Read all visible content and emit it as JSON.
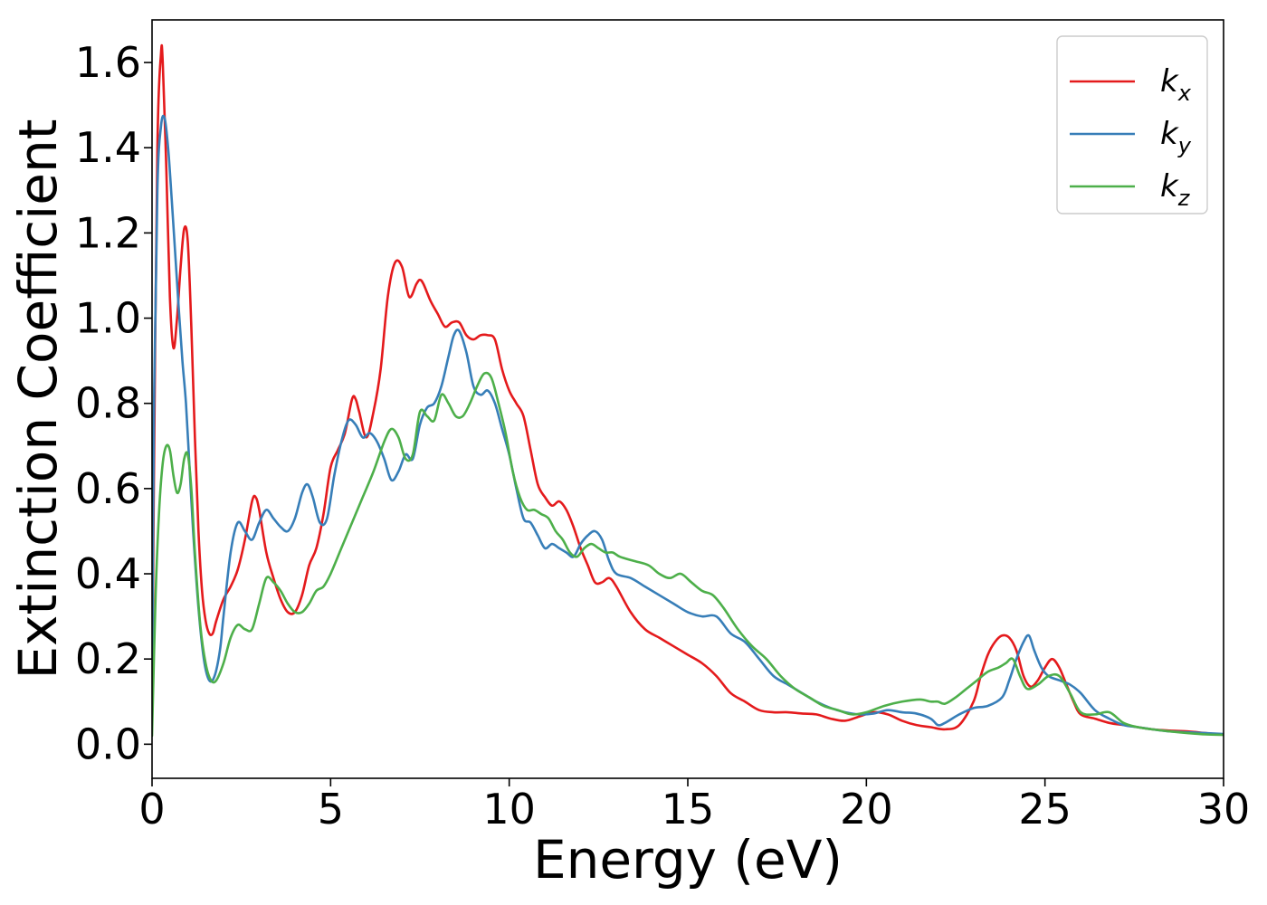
{
  "chart_data": {
    "type": "line",
    "title": "",
    "xlabel": "Energy (eV)",
    "ylabel": "Extinction Coefficient",
    "xlim": [
      0,
      30
    ],
    "ylim": [
      -0.08,
      1.7
    ],
    "xticks": [
      0,
      5,
      10,
      15,
      20,
      25,
      30
    ],
    "xtick_labels": [
      "0",
      "5",
      "10",
      "15",
      "20",
      "25",
      "30"
    ],
    "yticks": [
      0.0,
      0.2,
      0.4,
      0.6,
      0.8,
      1.0,
      1.2,
      1.4,
      1.6
    ],
    "ytick_labels": [
      "0.0",
      "0.2",
      "0.4",
      "0.6",
      "0.8",
      "1.0",
      "1.2",
      "1.4",
      "1.6"
    ],
    "grid": false,
    "legend_position": "top-right",
    "series": [
      {
        "name": "k_x",
        "label_main": "k",
        "label_sub": "x",
        "color": "#e41a1c",
        "x": [
          0,
          0.05,
          0.15,
          0.25,
          0.3,
          0.4,
          0.5,
          0.6,
          0.7,
          0.8,
          0.9,
          1.0,
          1.1,
          1.2,
          1.3,
          1.4,
          1.5,
          1.6,
          1.7,
          1.8,
          2.0,
          2.2,
          2.4,
          2.6,
          2.8,
          2.9,
          3.0,
          3.2,
          3.4,
          3.6,
          3.8,
          4.0,
          4.2,
          4.4,
          4.6,
          4.8,
          5.0,
          5.2,
          5.4,
          5.6,
          5.7,
          5.8,
          6.0,
          6.2,
          6.4,
          6.6,
          6.8,
          7.0,
          7.2,
          7.4,
          7.5,
          7.6,
          7.8,
          8.0,
          8.2,
          8.4,
          8.6,
          8.8,
          9.0,
          9.2,
          9.4,
          9.6,
          9.8,
          10.0,
          10.2,
          10.4,
          10.6,
          10.8,
          11.0,
          11.2,
          11.4,
          11.6,
          11.8,
          12.0,
          12.2,
          12.4,
          12.6,
          12.8,
          13.0,
          13.4,
          13.8,
          14.2,
          14.6,
          15.0,
          15.4,
          15.8,
          16.2,
          16.6,
          17.0,
          17.4,
          17.8,
          18.2,
          18.6,
          19.0,
          19.4,
          19.8,
          20.2,
          20.6,
          21.0,
          21.4,
          21.8,
          22.2,
          22.6,
          23.0,
          23.2,
          23.4,
          23.6,
          23.8,
          24.0,
          24.2,
          24.4,
          24.6,
          24.8,
          25.0,
          25.2,
          25.4,
          25.6,
          25.8,
          26.0,
          26.4,
          26.8,
          27.2,
          27.6,
          28.0,
          28.5,
          29.0,
          29.5,
          30.0
        ],
        "y": [
          0.05,
          0.6,
          1.4,
          1.62,
          1.6,
          1.35,
          1.05,
          0.93,
          1.0,
          1.12,
          1.21,
          1.18,
          0.98,
          0.72,
          0.5,
          0.36,
          0.29,
          0.26,
          0.26,
          0.29,
          0.34,
          0.37,
          0.41,
          0.48,
          0.57,
          0.58,
          0.55,
          0.45,
          0.39,
          0.34,
          0.31,
          0.31,
          0.35,
          0.42,
          0.46,
          0.54,
          0.65,
          0.69,
          0.73,
          0.81,
          0.81,
          0.78,
          0.72,
          0.78,
          0.88,
          1.05,
          1.13,
          1.12,
          1.05,
          1.08,
          1.09,
          1.08,
          1.04,
          1.01,
          0.98,
          0.99,
          0.99,
          0.96,
          0.95,
          0.96,
          0.96,
          0.95,
          0.88,
          0.83,
          0.8,
          0.77,
          0.69,
          0.61,
          0.58,
          0.56,
          0.57,
          0.55,
          0.51,
          0.46,
          0.42,
          0.38,
          0.38,
          0.39,
          0.37,
          0.31,
          0.27,
          0.25,
          0.23,
          0.21,
          0.19,
          0.16,
          0.12,
          0.1,
          0.08,
          0.075,
          0.075,
          0.072,
          0.07,
          0.06,
          0.055,
          0.065,
          0.075,
          0.07,
          0.055,
          0.045,
          0.04,
          0.035,
          0.045,
          0.1,
          0.16,
          0.21,
          0.24,
          0.255,
          0.25,
          0.22,
          0.16,
          0.135,
          0.15,
          0.18,
          0.2,
          0.18,
          0.14,
          0.1,
          0.07,
          0.06,
          0.05,
          0.045,
          0.04,
          0.035,
          0.032,
          0.03,
          0.026,
          0.022
        ]
      },
      {
        "name": "k_y",
        "label_main": "k",
        "label_sub": "y",
        "color": "#377eb8",
        "x": [
          0,
          0.05,
          0.15,
          0.25,
          0.35,
          0.45,
          0.55,
          0.65,
          0.75,
          0.85,
          0.95,
          1.05,
          1.15,
          1.3,
          1.45,
          1.6,
          1.75,
          1.9,
          2.0,
          2.2,
          2.4,
          2.6,
          2.8,
          3.0,
          3.2,
          3.4,
          3.6,
          3.8,
          4.0,
          4.2,
          4.35,
          4.5,
          4.7,
          4.9,
          5.1,
          5.3,
          5.5,
          5.7,
          5.9,
          6.1,
          6.3,
          6.5,
          6.7,
          6.9,
          7.1,
          7.3,
          7.5,
          7.7,
          7.9,
          8.1,
          8.3,
          8.45,
          8.6,
          8.8,
          9.0,
          9.2,
          9.4,
          9.6,
          9.8,
          10.0,
          10.2,
          10.4,
          10.6,
          10.8,
          11.0,
          11.2,
          11.4,
          11.6,
          11.8,
          12.0,
          12.2,
          12.4,
          12.6,
          12.8,
          13.0,
          13.4,
          13.8,
          14.2,
          14.6,
          15.0,
          15.4,
          15.8,
          16.2,
          16.6,
          17.0,
          17.4,
          17.8,
          18.2,
          18.6,
          19.0,
          19.4,
          19.8,
          20.2,
          20.6,
          21.0,
          21.4,
          21.8,
          22.0,
          22.2,
          22.6,
          23.0,
          23.4,
          23.8,
          24.0,
          24.2,
          24.4,
          24.55,
          24.7,
          24.9,
          25.1,
          25.4,
          25.7,
          26.0,
          26.4,
          26.8,
          27.2,
          27.6,
          28.0,
          28.5,
          29.0,
          29.5,
          30.0
        ],
        "y": [
          0.05,
          0.75,
          1.3,
          1.45,
          1.47,
          1.4,
          1.28,
          1.15,
          1.02,
          0.9,
          0.8,
          0.65,
          0.5,
          0.32,
          0.2,
          0.15,
          0.16,
          0.22,
          0.3,
          0.45,
          0.52,
          0.5,
          0.48,
          0.52,
          0.55,
          0.53,
          0.51,
          0.5,
          0.53,
          0.59,
          0.61,
          0.58,
          0.52,
          0.53,
          0.63,
          0.71,
          0.76,
          0.75,
          0.72,
          0.73,
          0.71,
          0.67,
          0.62,
          0.64,
          0.68,
          0.67,
          0.75,
          0.79,
          0.8,
          0.84,
          0.91,
          0.96,
          0.97,
          0.92,
          0.84,
          0.82,
          0.83,
          0.8,
          0.74,
          0.68,
          0.6,
          0.53,
          0.52,
          0.49,
          0.46,
          0.47,
          0.46,
          0.45,
          0.44,
          0.47,
          0.49,
          0.5,
          0.48,
          0.43,
          0.4,
          0.39,
          0.37,
          0.35,
          0.33,
          0.31,
          0.3,
          0.3,
          0.26,
          0.24,
          0.2,
          0.16,
          0.14,
          0.12,
          0.1,
          0.085,
          0.075,
          0.07,
          0.072,
          0.08,
          0.075,
          0.072,
          0.06,
          0.045,
          0.05,
          0.07,
          0.085,
          0.09,
          0.11,
          0.15,
          0.2,
          0.24,
          0.255,
          0.22,
          0.18,
          0.16,
          0.15,
          0.14,
          0.12,
          0.08,
          0.06,
          0.045,
          0.04,
          0.035,
          0.03,
          0.028,
          0.026,
          0.024
        ]
      },
      {
        "name": "k_z",
        "label_main": "k",
        "label_sub": "z",
        "color": "#4daf4a",
        "x": [
          0,
          0.1,
          0.2,
          0.3,
          0.4,
          0.5,
          0.6,
          0.7,
          0.8,
          0.9,
          1.0,
          1.1,
          1.2,
          1.35,
          1.5,
          1.65,
          1.8,
          2.0,
          2.2,
          2.4,
          2.6,
          2.8,
          3.0,
          3.2,
          3.4,
          3.6,
          3.8,
          4.0,
          4.2,
          4.4,
          4.6,
          4.8,
          5.0,
          5.3,
          5.6,
          5.9,
          6.2,
          6.5,
          6.7,
          6.9,
          7.1,
          7.3,
          7.5,
          7.7,
          7.9,
          8.1,
          8.3,
          8.5,
          8.7,
          8.9,
          9.1,
          9.3,
          9.5,
          9.7,
          9.9,
          10.1,
          10.3,
          10.5,
          10.7,
          10.9,
          11.1,
          11.3,
          11.5,
          11.7,
          11.9,
          12.1,
          12.3,
          12.5,
          12.7,
          12.9,
          13.1,
          13.5,
          13.9,
          14.2,
          14.5,
          14.8,
          15.1,
          15.4,
          15.7,
          16.0,
          16.4,
          16.8,
          17.2,
          17.6,
          18.0,
          18.4,
          18.8,
          19.2,
          19.6,
          20.0,
          20.5,
          21.0,
          21.5,
          21.8,
          22.0,
          22.2,
          22.5,
          22.8,
          23.1,
          23.4,
          23.7,
          23.9,
          24.1,
          24.3,
          24.5,
          24.8,
          25.1,
          25.4,
          25.7,
          26.0,
          26.4,
          26.8,
          27.2,
          27.6,
          28.0,
          28.5,
          29.0,
          29.5,
          30.0
        ],
        "y": [
          0.02,
          0.35,
          0.55,
          0.66,
          0.7,
          0.69,
          0.63,
          0.59,
          0.61,
          0.67,
          0.68,
          0.6,
          0.45,
          0.28,
          0.19,
          0.15,
          0.15,
          0.19,
          0.25,
          0.28,
          0.27,
          0.27,
          0.33,
          0.39,
          0.38,
          0.36,
          0.33,
          0.31,
          0.31,
          0.33,
          0.36,
          0.37,
          0.4,
          0.46,
          0.52,
          0.58,
          0.64,
          0.71,
          0.74,
          0.72,
          0.67,
          0.68,
          0.78,
          0.77,
          0.76,
          0.82,
          0.8,
          0.77,
          0.77,
          0.8,
          0.84,
          0.87,
          0.86,
          0.8,
          0.73,
          0.64,
          0.58,
          0.55,
          0.55,
          0.54,
          0.53,
          0.5,
          0.48,
          0.45,
          0.44,
          0.46,
          0.47,
          0.46,
          0.45,
          0.45,
          0.44,
          0.43,
          0.42,
          0.4,
          0.39,
          0.4,
          0.38,
          0.36,
          0.35,
          0.32,
          0.27,
          0.23,
          0.2,
          0.16,
          0.13,
          0.11,
          0.09,
          0.08,
          0.07,
          0.075,
          0.09,
          0.1,
          0.105,
          0.1,
          0.1,
          0.095,
          0.11,
          0.13,
          0.15,
          0.17,
          0.18,
          0.19,
          0.2,
          0.16,
          0.13,
          0.14,
          0.16,
          0.16,
          0.12,
          0.075,
          0.07,
          0.075,
          0.05,
          0.04,
          0.035,
          0.03,
          0.026,
          0.023,
          0.022
        ]
      }
    ]
  }
}
